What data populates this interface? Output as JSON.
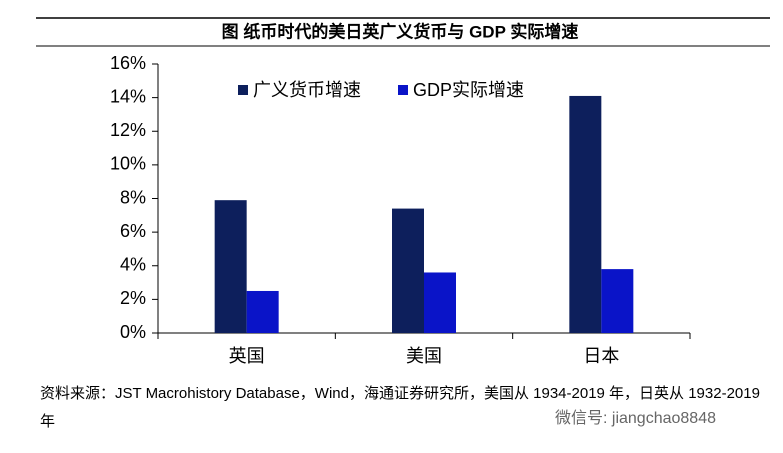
{
  "chart_data": {
    "type": "bar",
    "title": "图  纸币时代的美日英广义货币与 GDP 实际增速",
    "categories": [
      "英国",
      "美国",
      "日本"
    ],
    "series": [
      {
        "name": "广义货币增速",
        "color": "#0d1f5c",
        "values": [
          7.9,
          7.4,
          14.1
        ]
      },
      {
        "name": "GDP实际增速",
        "color": "#0a14c8",
        "values": [
          2.5,
          3.6,
          3.8
        ]
      }
    ],
    "ylim": [
      0,
      16
    ],
    "yticks": [
      {
        "value": 0,
        "label": "0%"
      },
      {
        "value": 2,
        "label": "2%"
      },
      {
        "value": 4,
        "label": "4%"
      },
      {
        "value": 6,
        "label": "6%"
      },
      {
        "value": 8,
        "label": "8%"
      },
      {
        "value": 10,
        "label": "10%"
      },
      {
        "value": 12,
        "label": "12%"
      },
      {
        "value": 14,
        "label": "14%"
      },
      {
        "value": 16,
        "label": "16%"
      }
    ],
    "legend": "top-left",
    "source": "资料来源：JST Macrohistory Database，Wind，海通证券研究所，美国从 1934-2019 年，日英从 1932-2019 年",
    "watermark": "微信号: jiangchao8848"
  }
}
